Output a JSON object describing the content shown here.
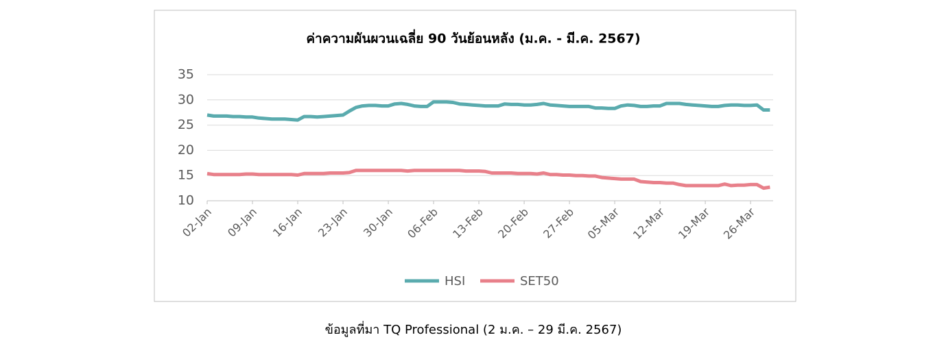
{
  "chart_data": {
    "type": "line",
    "title": "ค่าความผันผวนเฉลี่ย 90 วันย้อนหลัง (ม.ค. - มี.ค. 2567)",
    "caption": "ข้อมูลที่มา TQ Professional (2 ม.ค. – 29 มี.ค. 2567)",
    "categories": [
      "02-Jan",
      null,
      null,
      null,
      null,
      null,
      null,
      "09-Jan",
      null,
      null,
      null,
      null,
      null,
      null,
      "16-Jan",
      null,
      null,
      null,
      null,
      null,
      null,
      "23-Jan",
      null,
      null,
      null,
      null,
      null,
      null,
      "30-Jan",
      null,
      null,
      null,
      null,
      null,
      null,
      "06-Feb",
      null,
      null,
      null,
      null,
      null,
      null,
      "13-Feb",
      null,
      null,
      null,
      null,
      null,
      null,
      "20-Feb",
      null,
      null,
      null,
      null,
      null,
      null,
      "27-Feb",
      null,
      null,
      null,
      null,
      null,
      null,
      "05-Mar",
      null,
      null,
      null,
      null,
      null,
      null,
      "12-Mar",
      null,
      null,
      null,
      null,
      null,
      null,
      "19-Mar",
      null,
      null,
      null,
      null,
      null,
      null,
      "26-Mar",
      null,
      null,
      null
    ],
    "series": [
      {
        "name": "HSI",
        "color": "#5aabae",
        "values": [
          27.0,
          26.8,
          26.8,
          26.8,
          26.7,
          26.7,
          26.6,
          26.6,
          26.4,
          26.3,
          26.2,
          26.2,
          26.2,
          26.1,
          26.0,
          26.7,
          26.7,
          26.6,
          26.7,
          26.8,
          26.9,
          27.0,
          27.8,
          28.5,
          28.8,
          28.9,
          28.9,
          28.8,
          28.8,
          29.2,
          29.3,
          29.1,
          28.8,
          28.7,
          28.7,
          29.6,
          29.6,
          29.6,
          29.5,
          29.2,
          29.1,
          29.0,
          28.9,
          28.8,
          28.8,
          28.8,
          29.2,
          29.1,
          29.1,
          29.0,
          29.0,
          29.1,
          29.3,
          29.0,
          28.9,
          28.8,
          28.7,
          28.7,
          28.7,
          28.7,
          28.4,
          28.4,
          28.3,
          28.3,
          28.8,
          29.0,
          28.9,
          28.7,
          28.7,
          28.8,
          28.8,
          29.3,
          29.3,
          29.3,
          29.1,
          29.0,
          28.9,
          28.8,
          28.7,
          28.7,
          28.9,
          29.0,
          29.0,
          28.9,
          28.9,
          29.0,
          28.0,
          28.0
        ]
      },
      {
        "name": "SET50",
        "color": "#e8808a",
        "values": [
          15.4,
          15.2,
          15.2,
          15.2,
          15.2,
          15.2,
          15.3,
          15.3,
          15.2,
          15.2,
          15.2,
          15.2,
          15.2,
          15.2,
          15.1,
          15.4,
          15.4,
          15.4,
          15.4,
          15.5,
          15.5,
          15.5,
          15.6,
          16.0,
          16.0,
          16.0,
          16.0,
          16.0,
          16.0,
          16.0,
          16.0,
          15.9,
          16.0,
          16.0,
          16.0,
          16.0,
          16.0,
          16.0,
          16.0,
          16.0,
          15.9,
          15.9,
          15.9,
          15.8,
          15.5,
          15.5,
          15.5,
          15.5,
          15.4,
          15.4,
          15.4,
          15.3,
          15.5,
          15.2,
          15.2,
          15.1,
          15.1,
          15.0,
          15.0,
          14.9,
          14.9,
          14.6,
          14.5,
          14.4,
          14.3,
          14.3,
          14.3,
          13.8,
          13.7,
          13.6,
          13.6,
          13.5,
          13.5,
          13.2,
          13.0,
          13.0,
          13.0,
          13.0,
          13.0,
          13.0,
          13.3,
          13.0,
          13.1,
          13.1,
          13.2,
          13.2,
          12.5,
          12.7
        ]
      }
    ],
    "ylim": [
      10,
      35
    ],
    "yticks": [
      10,
      15,
      20,
      25,
      30,
      35
    ],
    "grid": true,
    "legend": "bottom"
  }
}
